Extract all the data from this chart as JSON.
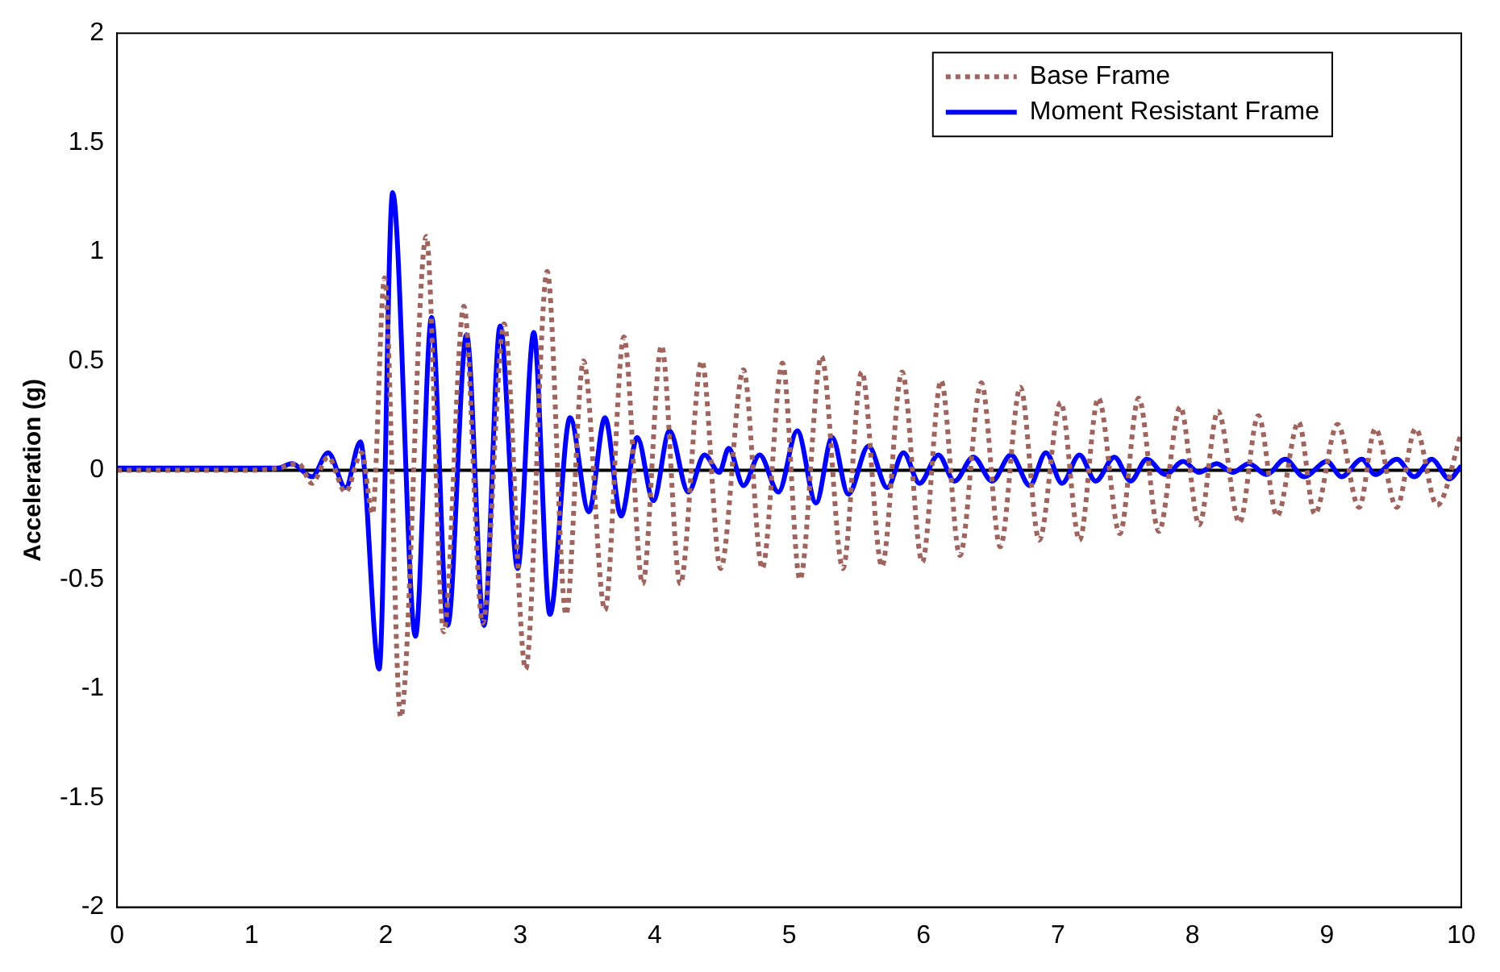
{
  "chart_data": {
    "type": "line",
    "ylabel": "Acceleration (g)",
    "xlim": [
      0,
      10
    ],
    "xticks": [
      0,
      1,
      2,
      3,
      4,
      5,
      6,
      7,
      8,
      9,
      10
    ],
    "ylim": [
      -2,
      2
    ],
    "yticks": [
      -2,
      -1.5,
      -1,
      -0.5,
      0,
      0.5,
      1,
      1.5,
      2
    ],
    "legend": "top right",
    "marker": "none",
    "ref_lines": [
      {
        "axis": "y",
        "value": 0,
        "color": "#000000",
        "line_style": "solid"
      }
    ],
    "series": [
      {
        "name": "Base Frame",
        "color": "#a0645f",
        "line_style": "dotted",
        "x": [
          0,
          1,
          1.2,
          1.35,
          1.45,
          1.57,
          1.7,
          1.82,
          1.9,
          1.99,
          2.11,
          2.3,
          2.43,
          2.58,
          2.72,
          2.88,
          3.04,
          3.2,
          3.34,
          3.47,
          3.63,
          3.77,
          3.91,
          4.05,
          4.19,
          4.35,
          4.49,
          4.66,
          4.8,
          4.95,
          5.08,
          5.24,
          5.4,
          5.54,
          5.69,
          5.84,
          5.99,
          6.13,
          6.27,
          6.43,
          6.57,
          6.72,
          6.86,
          7.02,
          7.16,
          7.3,
          7.46,
          7.6,
          7.75,
          7.91,
          8.05,
          8.19,
          8.35,
          8.49,
          8.63,
          8.79,
          8.91,
          9.08,
          9.24,
          9.36,
          9.52,
          9.66,
          9.82,
          10
        ],
        "values": [
          0,
          0,
          0.01,
          0.03,
          -0.06,
          0.06,
          -0.1,
          0.08,
          -0.2,
          0.88,
          -1.13,
          1.07,
          -0.74,
          0.75,
          -0.7,
          0.67,
          -0.91,
          0.91,
          -0.66,
          0.5,
          -0.64,
          0.61,
          -0.52,
          0.57,
          -0.52,
          0.5,
          -0.45,
          0.46,
          -0.45,
          0.49,
          -0.5,
          0.52,
          -0.45,
          0.45,
          -0.44,
          0.45,
          -0.42,
          0.41,
          -0.39,
          0.4,
          -0.35,
          0.38,
          -0.32,
          0.31,
          -0.32,
          0.33,
          -0.29,
          0.33,
          -0.28,
          0.29,
          -0.25,
          0.27,
          -0.24,
          0.25,
          -0.21,
          0.22,
          -0.2,
          0.21,
          -0.17,
          0.19,
          -0.17,
          0.19,
          -0.16,
          0.17
        ]
      },
      {
        "name": "Moment Resistant Frame",
        "color": "#0000ff",
        "line_style": "solid",
        "x": [
          0,
          1,
          1.2,
          1.3,
          1.45,
          1.57,
          1.7,
          1.81,
          1.95,
          2.05,
          2.22,
          2.34,
          2.46,
          2.6,
          2.73,
          2.85,
          2.98,
          3.1,
          3.22,
          3.37,
          3.51,
          3.63,
          3.75,
          3.87,
          3.99,
          4.11,
          4.25,
          4.37,
          4.48,
          4.55,
          4.66,
          4.78,
          4.92,
          5.06,
          5.2,
          5.32,
          5.44,
          5.59,
          5.73,
          5.85,
          5.97,
          6.11,
          6.23,
          6.37,
          6.51,
          6.65,
          6.79,
          6.91,
          7.03,
          7.16,
          7.28,
          7.42,
          7.54,
          7.66,
          7.8,
          7.93,
          8.05,
          8.18,
          8.3,
          8.42,
          8.55,
          8.69,
          8.83,
          9,
          9.11,
          9.26,
          9.36,
          9.52,
          9.65,
          9.78,
          9.91,
          10
        ],
        "values": [
          0.01,
          0.01,
          0.01,
          0.03,
          -0.03,
          0.08,
          -0.08,
          0.13,
          -0.91,
          1.27,
          -0.76,
          0.7,
          -0.71,
          0.62,
          -0.71,
          0.66,
          -0.45,
          0.63,
          -0.66,
          0.24,
          -0.19,
          0.24,
          -0.21,
          0.15,
          -0.14,
          0.18,
          -0.1,
          0.07,
          -0.01,
          0.1,
          -0.07,
          0.07,
          -0.1,
          0.18,
          -0.15,
          0.15,
          -0.11,
          0.11,
          -0.08,
          0.08,
          -0.06,
          0.07,
          -0.05,
          0.06,
          -0.05,
          0.07,
          -0.07,
          0.08,
          -0.06,
          0.07,
          -0.05,
          0.06,
          -0.05,
          0.05,
          -0.02,
          0.04,
          -0.01,
          0.03,
          -0.01,
          0.03,
          -0.02,
          0.05,
          -0.03,
          0.04,
          -0.03,
          0.05,
          -0.02,
          0.05,
          -0.03,
          0.05,
          -0.04,
          0.02
        ]
      }
    ]
  }
}
